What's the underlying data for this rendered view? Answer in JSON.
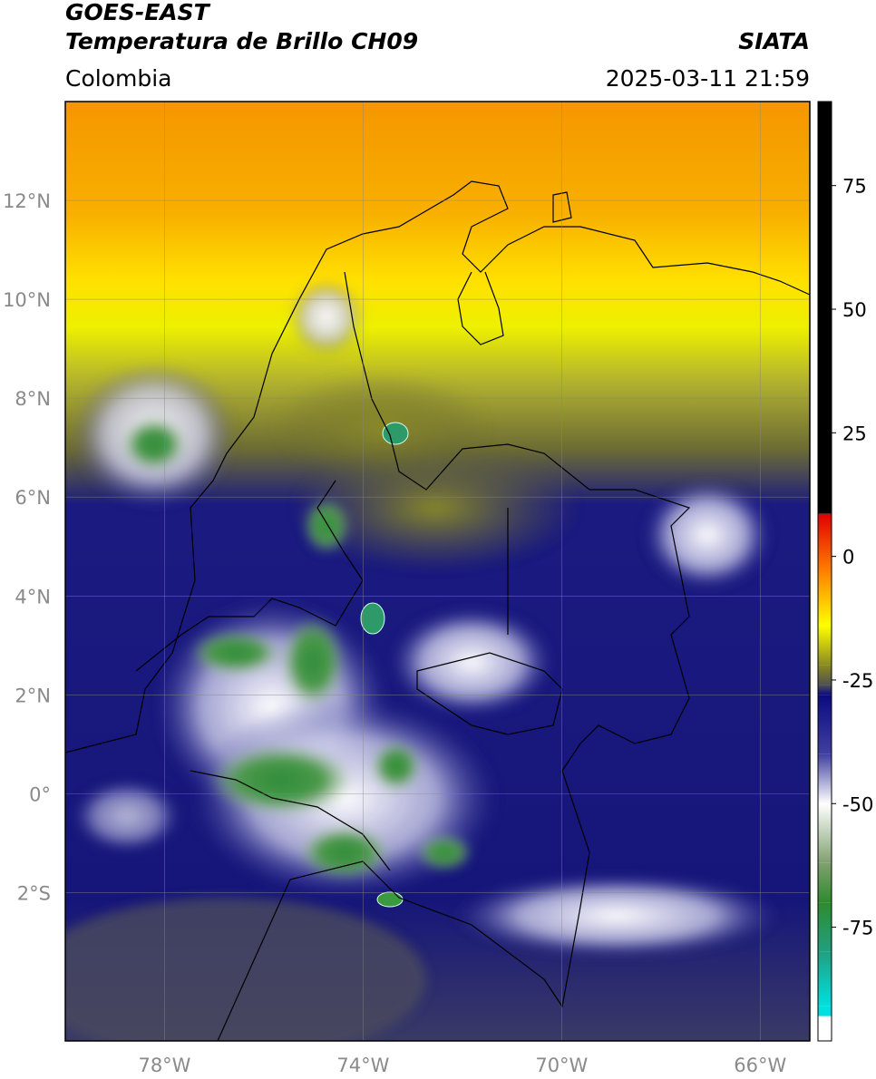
{
  "header": {
    "title": "GOES-EAST",
    "subtitle": "Temperatura de Brillo CH09",
    "source": "SIATA",
    "region": "Colombia",
    "datetime": "2025-03-11 21:59"
  },
  "map": {
    "xlim": [
      -80,
      -65
    ],
    "ylim": [
      -5,
      14
    ],
    "grid": true,
    "xticks": [
      {
        "value": -78,
        "label": "78°W"
      },
      {
        "value": -74,
        "label": "74°W"
      },
      {
        "value": -70,
        "label": "70°W"
      },
      {
        "value": -66,
        "label": "66°W"
      }
    ],
    "yticks": [
      {
        "value": -2,
        "label": "2°S"
      },
      {
        "value": 0,
        "label": "0°"
      },
      {
        "value": 2,
        "label": "2°N"
      },
      {
        "value": 4,
        "label": "4°N"
      },
      {
        "value": 6,
        "label": "6°N"
      },
      {
        "value": 8,
        "label": "8°N"
      },
      {
        "value": 10,
        "label": "10°N"
      },
      {
        "value": 12,
        "label": "12°N"
      }
    ]
  },
  "colorbar": {
    "lim": [
      -98,
      92
    ],
    "ticks": [
      75,
      50,
      25,
      0,
      -25,
      -50,
      -75
    ],
    "stops": [
      {
        "value": 92,
        "color": "#000000"
      },
      {
        "value": 8.6,
        "color": "#000000"
      },
      {
        "value": 8.6,
        "color": "#e00000"
      },
      {
        "value": -3,
        "color": "#ff8000"
      },
      {
        "value": -14,
        "color": "#ffff00"
      },
      {
        "value": -22,
        "color": "#8a8a20"
      },
      {
        "value": -26,
        "color": "#505050"
      },
      {
        "value": -28,
        "color": "#0a0a80"
      },
      {
        "value": -40,
        "color": "#4040a0"
      },
      {
        "value": -50,
        "color": "#ffffff"
      },
      {
        "value": -62,
        "color": "#80a070"
      },
      {
        "value": -70,
        "color": "#2e8b2e"
      },
      {
        "value": -80,
        "color": "#20a080"
      },
      {
        "value": -91,
        "color": "#00e0e0"
      },
      {
        "value": -93,
        "color": "#00e0e0"
      },
      {
        "value": -93,
        "color": "#ffffff"
      },
      {
        "value": -98,
        "color": "#ffffff"
      }
    ]
  }
}
